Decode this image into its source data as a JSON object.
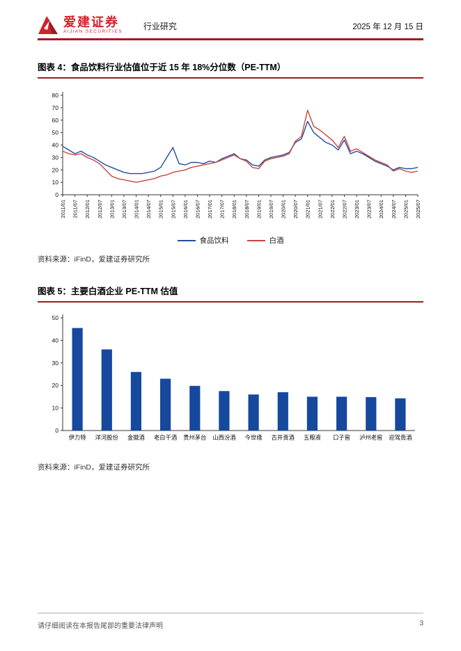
{
  "header": {
    "logo_title": "爱建证券",
    "logo_subtitle": "AIJIAN SECURITIES",
    "section_label": "行业研究",
    "date": "2025 年 12 月 15 日"
  },
  "figure4": {
    "title": "图表 4：食品饮料行业估值位于近 15 年 18%分位数（PE-TTM）",
    "source": "资料来源：iFinD，爱建证券研究所"
  },
  "figure5": {
    "title": "图表 5：主要白酒企业 PE-TTM 估值",
    "source": "资料来源：iFinD，爱建证券研究所"
  },
  "footer": {
    "disclaimer": "请仔细阅读在本报告尾部的重要法律声明",
    "page_number": "3"
  },
  "colors": {
    "accent_red": "#9e1c22",
    "logo_red": "#d2232a",
    "line_blue": "#1f4e9c",
    "line_red": "#c9443d",
    "bar_blue": "#16489e"
  },
  "chart_data": [
    {
      "type": "line",
      "title": "食品饮料行业估值位于近 15 年 18%分位数（PE-TTM）",
      "ylim": [
        0,
        80
      ],
      "yticks": [
        0,
        10,
        20,
        30,
        40,
        50,
        60,
        70,
        80
      ],
      "grid": false,
      "legend_position": "bottom",
      "x_tick_labels": [
        "2011/01",
        "2011/07",
        "2012/01",
        "2012/07",
        "2013/01",
        "2013/07",
        "2014/01",
        "2014/07",
        "2015/01",
        "2015/07",
        "2016/01",
        "2016/07",
        "2017/01",
        "2017/07",
        "2018/01",
        "2018/07",
        "2019/01",
        "2019/07",
        "2020/01",
        "2020/07",
        "2021/01",
        "2021/07",
        "2022/01",
        "2022/07",
        "2023/01",
        "2023/07",
        "2024/01",
        "2024/07",
        "2025/01",
        "2025/07"
      ],
      "series": [
        {
          "name": "食品饮料",
          "color": "#1f4e9c",
          "values": [
            39,
            36,
            33,
            35,
            32,
            30,
            27,
            24,
            22,
            20,
            18,
            17,
            17,
            17,
            18,
            19,
            22,
            30,
            38,
            25,
            24,
            26,
            26,
            25,
            27,
            26,
            29,
            31,
            33,
            29,
            28,
            24,
            23,
            28,
            30,
            31,
            32,
            34,
            42,
            45,
            59,
            50,
            46,
            42,
            40,
            36,
            44,
            33,
            35,
            33,
            30,
            27,
            25,
            23,
            20,
            22,
            21,
            21,
            22
          ]
        },
        {
          "name": "白酒",
          "color": "#c9443d",
          "values": [
            35,
            33,
            32,
            33,
            30,
            28,
            25,
            20,
            15,
            13,
            12,
            11,
            10,
            11,
            12,
            13,
            15,
            16,
            18,
            19,
            20,
            22,
            23,
            24,
            25,
            26,
            28,
            30,
            32,
            29,
            27,
            22,
            21,
            27,
            29,
            30,
            31,
            33,
            43,
            47,
            68,
            55,
            52,
            48,
            44,
            38,
            47,
            35,
            37,
            34,
            31,
            28,
            26,
            24,
            19,
            21,
            19,
            18,
            19
          ]
        }
      ]
    },
    {
      "type": "bar",
      "title": "主要白酒企业 PE-TTM 估值",
      "categories": [
        "伊力特",
        "洋河股份",
        "金徽酒",
        "老白干酒",
        "贵州茅台",
        "山西汾酒",
        "今世缘",
        "古井贡酒",
        "五粮液",
        "口子窖",
        "泸州老窖",
        "迎驾贡酒"
      ],
      "values": [
        45.5,
        36,
        26,
        23,
        19.8,
        17.5,
        16,
        17,
        15,
        15,
        14.8,
        14.3
      ],
      "ylim": [
        0,
        50
      ],
      "yticks": [
        0,
        10,
        20,
        30,
        40,
        50
      ],
      "bar_color": "#16489e",
      "grid": false
    }
  ]
}
